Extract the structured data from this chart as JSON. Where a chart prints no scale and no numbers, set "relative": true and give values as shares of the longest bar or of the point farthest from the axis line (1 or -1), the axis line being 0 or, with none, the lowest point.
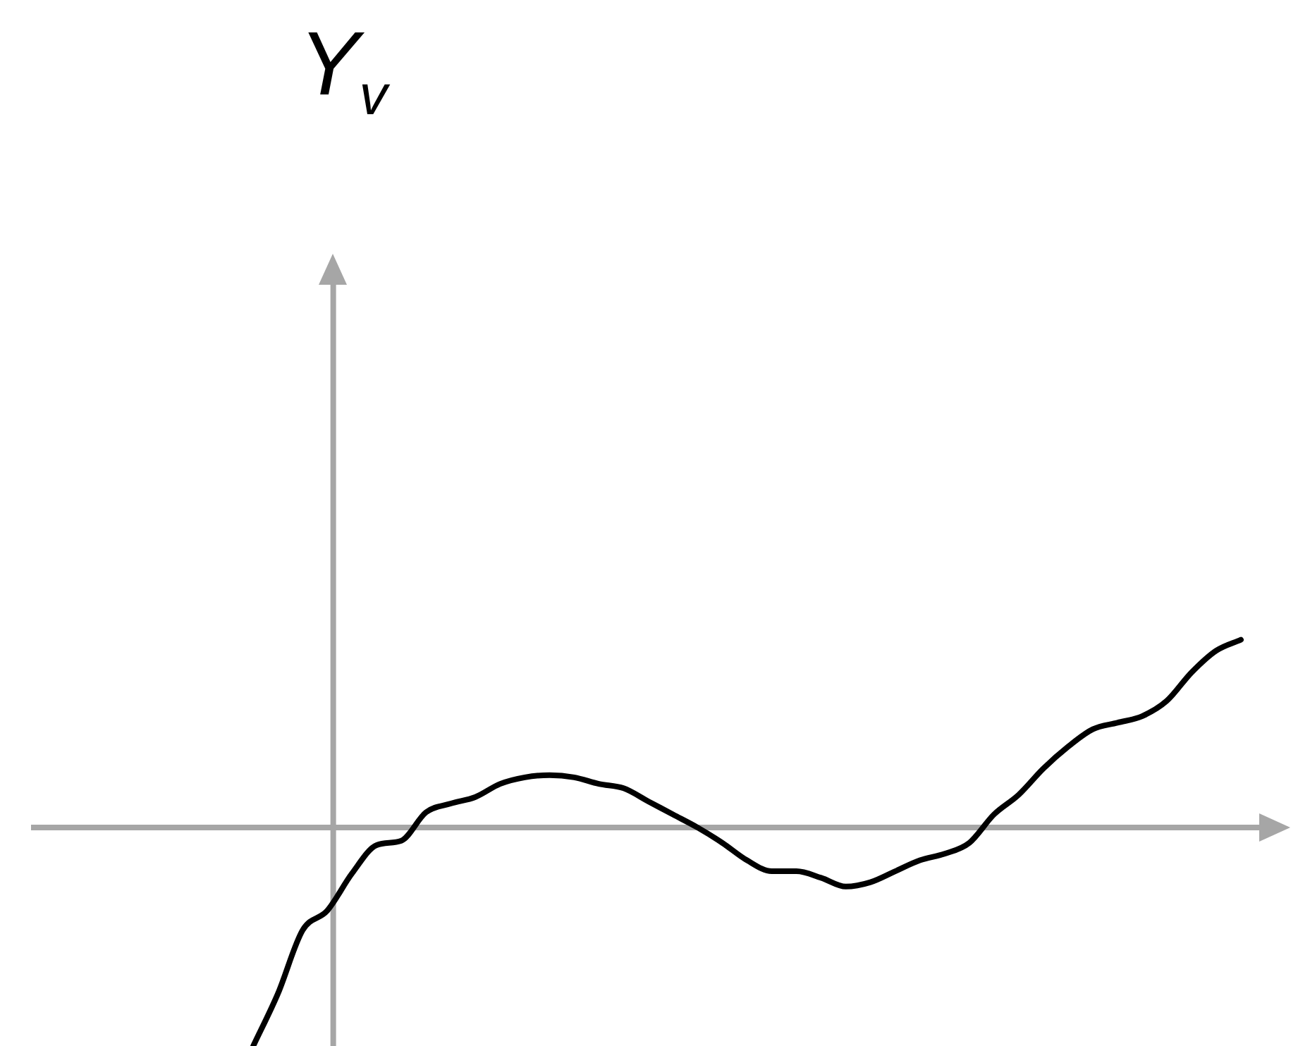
{
  "chart_data": {
    "type": "line",
    "annotations": [
      "Y$_{v}$"
    ],
    "relative": true,
    "legend": false,
    "marker": "none",
    "line_style": "solid",
    "categories": [
      null,
      null,
      null,
      null,
      null,
      null,
      null,
      null,
      null,
      null,
      null,
      null,
      null,
      null,
      null,
      null,
      null,
      null,
      null,
      null,
      null,
      null,
      null,
      null,
      null,
      null,
      null,
      null,
      null,
      null,
      null,
      null,
      null,
      null,
      null,
      null,
      null,
      null,
      null,
      null,
      null,
      null,
      null,
      null,
      null,
      null,
      null,
      null,
      null,
      null,
      null,
      null
    ],
    "series": [
      {
        "color": "#000000",
        "values": [
          null,
          null,
          null,
          null,
          null,
          null,
          null,
          null,
          null,
          -1,
          -0.76,
          -0.47,
          -0.38,
          -0.21,
          -0.08,
          -0.06,
          0.07,
          0.11,
          0.14,
          0.2,
          0.23,
          0.24,
          0.23,
          0.2,
          0.18,
          0.12,
          0.06,
          0,
          -0.07,
          -0.15,
          -0.2,
          -0.2,
          -0.23,
          -0.27,
          -0.25,
          -0.2,
          -0.15,
          -0.12,
          -0.07,
          0.06,
          0.15,
          0.27,
          0.37,
          0.45,
          0.48,
          0.51,
          0.58,
          0.71,
          0.81,
          0.86,
          null,
          null
        ]
      }
    ]
  }
}
